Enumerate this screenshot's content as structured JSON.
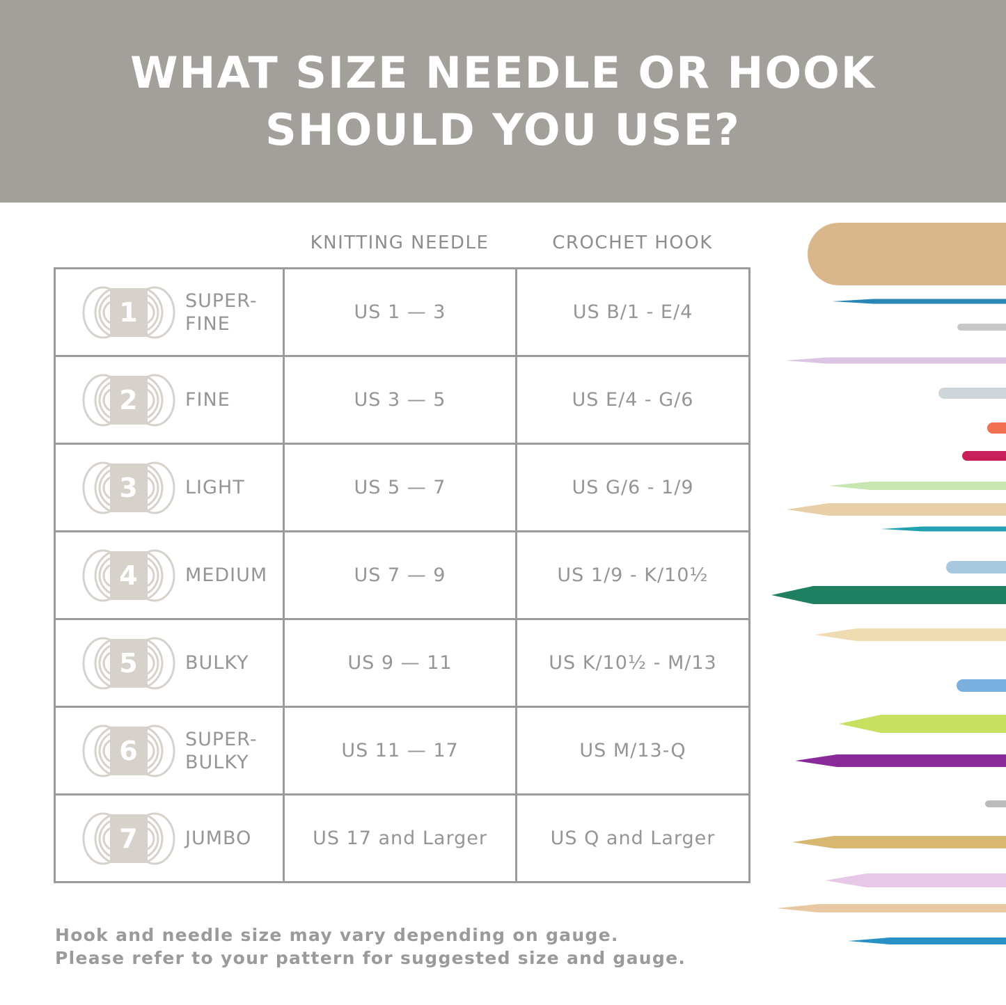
{
  "header": {
    "title_line1": "WHAT SIZE NEEDLE OR HOOK",
    "title_line2": "SHOULD YOU USE?"
  },
  "columns": {
    "knitting": "KNITTING NEEDLE",
    "crochet": "CROCHET HOOK"
  },
  "rows": [
    {
      "number": "1",
      "weight": "SUPER-\nFINE",
      "knitting": "US 1 — 3",
      "crochet": "US B/1 - E/4"
    },
    {
      "number": "2",
      "weight": "FINE",
      "knitting": "US 3 — 5",
      "crochet": "US E/4 - G/6"
    },
    {
      "number": "3",
      "weight": "LIGHT",
      "knitting": "US 5 — 7",
      "crochet": "US G/6 - 1/9"
    },
    {
      "number": "4",
      "weight": "MEDIUM",
      "knitting": "US 7 — 9",
      "crochet": "US 1/9 - K/10½"
    },
    {
      "number": "5",
      "weight": "BULKY",
      "knitting": "US 9 — 11",
      "crochet": "US K/10½ - M/13"
    },
    {
      "number": "6",
      "weight": "SUPER-\nBULKY",
      "knitting": "US 11 — 17",
      "crochet": "US M/13-Q"
    },
    {
      "number": "7",
      "weight": "JUMBO",
      "knitting": "US 17 and Larger",
      "crochet": "US Q and Larger"
    }
  ],
  "note": {
    "line1": "Hook and needle size may vary depending on gauge.",
    "line2": "Please refer to your pattern for suggested size and gauge."
  },
  "colors": {
    "header": "#a39f9a",
    "yarn_icon": "#d6d2cb",
    "text": "#959595"
  }
}
